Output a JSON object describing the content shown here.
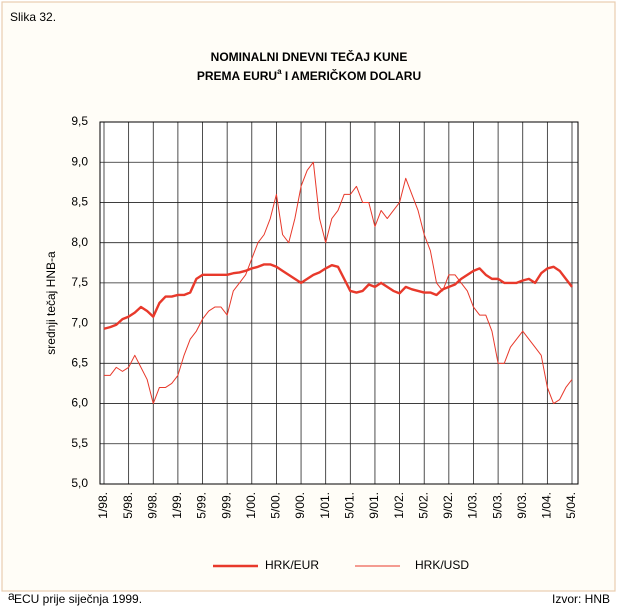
{
  "chart_data": {
    "type": "line",
    "figure_label": "Slika 32.",
    "title_lines": [
      "NOMINALNI DNEVNI TEČAJ KUNE",
      "PREMA EURU",
      " I AMERIČKOM DOLARU"
    ],
    "title_note_mark": "a",
    "ylabel": "srednji tečaj HNB-a",
    "categories": [
      "1/98.",
      null,
      null,
      null,
      "5/98.",
      null,
      null,
      null,
      "9/98.",
      null,
      null,
      null,
      "1/99.",
      null,
      null,
      null,
      "5/99.",
      null,
      null,
      null,
      "9/99.",
      null,
      null,
      null,
      "1/00.",
      null,
      null,
      null,
      "5/00.",
      null,
      null,
      null,
      "9/00.",
      null,
      null,
      null,
      "1/01.",
      null,
      null,
      null,
      "5/01.",
      null,
      null,
      null,
      "9/01.",
      null,
      null,
      null,
      "1/02.",
      null,
      null,
      null,
      "5/02.",
      null,
      null,
      null,
      "9/02.",
      null,
      null,
      null,
      "1/03.",
      null,
      null,
      null,
      "5/03.",
      null,
      null,
      null,
      "9/03.",
      null,
      null,
      null,
      "1/04.",
      null,
      null,
      null,
      "5/04."
    ],
    "series": [
      {
        "name": "HRK/EUR",
        "color": "#e8392b",
        "width": 2.4,
        "values": [
          6.93,
          6.95,
          6.98,
          7.05,
          7.08,
          7.13,
          7.2,
          7.15,
          7.08,
          7.25,
          7.33,
          7.33,
          7.35,
          7.35,
          7.38,
          7.55,
          7.6,
          7.6,
          7.6,
          7.6,
          7.6,
          7.62,
          7.63,
          7.65,
          7.68,
          7.7,
          7.73,
          7.73,
          7.7,
          7.65,
          7.6,
          7.55,
          7.5,
          7.55,
          7.6,
          7.63,
          7.68,
          7.72,
          7.7,
          7.55,
          7.4,
          7.38,
          7.4,
          7.48,
          7.45,
          7.5,
          7.45,
          7.4,
          7.37,
          7.45,
          7.42,
          7.4,
          7.38,
          7.38,
          7.35,
          7.42,
          7.45,
          7.48,
          7.55,
          7.6,
          7.65,
          7.68,
          7.6,
          7.55,
          7.55,
          7.5,
          7.5,
          7.5,
          7.53,
          7.55,
          7.5,
          7.62,
          7.68,
          7.7,
          7.65,
          7.55,
          7.45
        ]
      },
      {
        "name": "HRK/USD",
        "color": "#e8392b",
        "width": 1,
        "values": [
          6.35,
          6.35,
          6.45,
          6.4,
          6.45,
          6.6,
          6.45,
          6.3,
          6.0,
          6.2,
          6.2,
          6.25,
          6.35,
          6.6,
          6.8,
          6.9,
          7.05,
          7.15,
          7.2,
          7.2,
          7.1,
          7.4,
          7.5,
          7.6,
          7.8,
          8.0,
          8.1,
          8.3,
          8.6,
          8.1,
          8.0,
          8.3,
          8.7,
          8.9,
          9.0,
          8.3,
          8.0,
          8.3,
          8.4,
          8.6,
          8.6,
          8.7,
          8.5,
          8.5,
          8.2,
          8.4,
          8.3,
          8.4,
          8.5,
          8.8,
          8.6,
          8.4,
          8.1,
          7.9,
          7.5,
          7.4,
          7.6,
          7.6,
          7.5,
          7.4,
          7.2,
          7.1,
          7.1,
          6.9,
          6.5,
          6.5,
          6.7,
          6.8,
          6.9,
          6.8,
          6.7,
          6.6,
          6.2,
          6.0,
          6.05,
          6.2,
          6.3
        ]
      }
    ],
    "ylim": [
      5.0,
      9.5
    ],
    "yticks": [
      {
        "value": 5.0,
        "label": "5,0"
      },
      {
        "value": 5.5,
        "label": "5,5"
      },
      {
        "value": 6.0,
        "label": "6,0"
      },
      {
        "value": 6.5,
        "label": "6,5"
      },
      {
        "value": 7.0,
        "label": "7,0"
      },
      {
        "value": 7.5,
        "label": "7,5"
      },
      {
        "value": 8.0,
        "label": "8,0"
      },
      {
        "value": 8.5,
        "label": "8,5"
      },
      {
        "value": 9.0,
        "label": "9,0"
      },
      {
        "value": 9.5,
        "label": "9,5"
      }
    ],
    "grid": true,
    "footnote_mark": "a",
    "footnote": "ECU prije siječnja 1999.",
    "source": "Izvor: HNB"
  }
}
